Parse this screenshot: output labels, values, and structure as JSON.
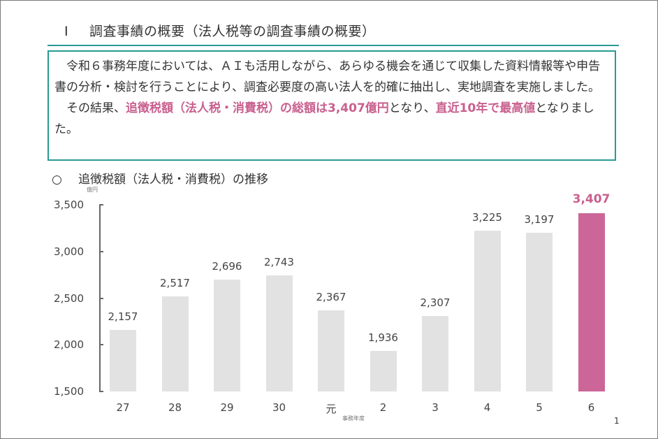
{
  "page": {
    "section_number": "Ⅰ",
    "section_title": "調査事績の概要（法人税等の調査事績の概要）",
    "page_number": "1"
  },
  "summary": {
    "para1": "令和６事務年度においては、ＡＩも活用しながら、あらゆる機会を通じて収集した資料情報等や申告書の分析・検討を行うことにより、調査必要度の高い法人を的確に抽出し、実地調査を実施しました。",
    "para2_pre": "その結果、",
    "para2_hl1": "追徴税額（法人税・消費税）の総額は3,407億円",
    "para2_mid": "となり、",
    "para2_hl2": "直近10年で最高値",
    "para2_post": "となりました。"
  },
  "chart_heading": {
    "bullet": "○",
    "text": "追徴税額（法人税・消費税）の推移"
  },
  "colors": {
    "accent_teal": "#2a9a94",
    "highlight_pink": "#cc6699",
    "bar_gray": "#e2e2e2"
  },
  "chart_data": {
    "type": "bar",
    "title": "追徴税額（法人税・消費税）の推移",
    "xlabel": "事務年度",
    "ylabel": "億円",
    "categories": [
      "27",
      "28",
      "29",
      "30",
      "元",
      "2",
      "3",
      "4",
      "5",
      "6"
    ],
    "values": [
      2157,
      2517,
      2696,
      2743,
      2367,
      1936,
      2307,
      3225,
      3197,
      3407
    ],
    "value_labels": [
      "2,157",
      "2,517",
      "2,696",
      "2,743",
      "2,367",
      "1,936",
      "2,307",
      "3,225",
      "3,197",
      "3,407"
    ],
    "highlight_index": 9,
    "ylim": [
      1500,
      3500
    ],
    "yticks": [
      1500,
      2000,
      2500,
      3000,
      3500
    ],
    "ytick_labels": [
      "1,500",
      "2,000",
      "2,500",
      "3,000",
      "3,500"
    ],
    "grid": false,
    "legend": null
  }
}
